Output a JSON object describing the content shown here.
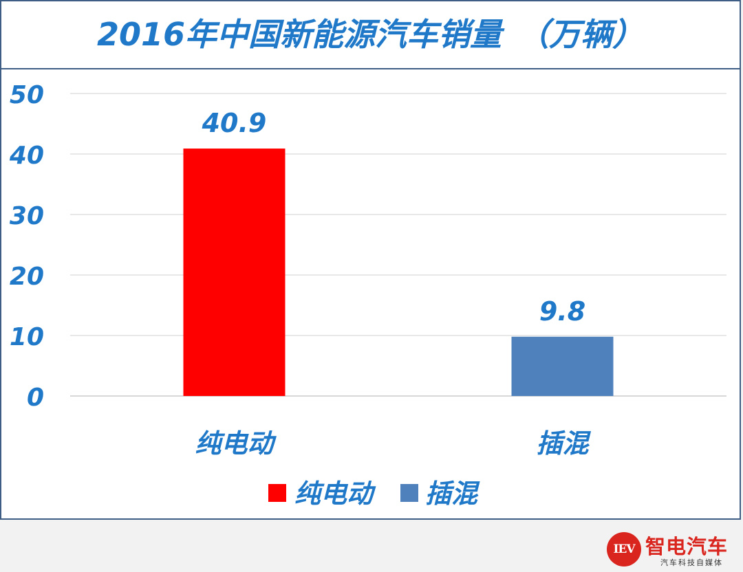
{
  "chart_data": {
    "type": "bar",
    "title": "2016年中国新能源汽车销量　（万辆）",
    "categories": [
      "纯电动",
      "插混"
    ],
    "values": [
      40.9,
      9.8
    ],
    "data_labels": [
      "40.9",
      "9.8"
    ],
    "colors": [
      "#ff0000",
      "#4f81bd"
    ],
    "yticks": [
      "0",
      "10",
      "20",
      "30",
      "40",
      "50"
    ],
    "ylim": [
      0,
      50
    ],
    "grid": true,
    "legend": {
      "placement": "bottom-center",
      "entries": [
        "纯电动",
        "插混"
      ]
    }
  },
  "brand": {
    "logo_text": "IEV",
    "name": "智电汽车",
    "tagline": "汽车科技自媒体"
  }
}
